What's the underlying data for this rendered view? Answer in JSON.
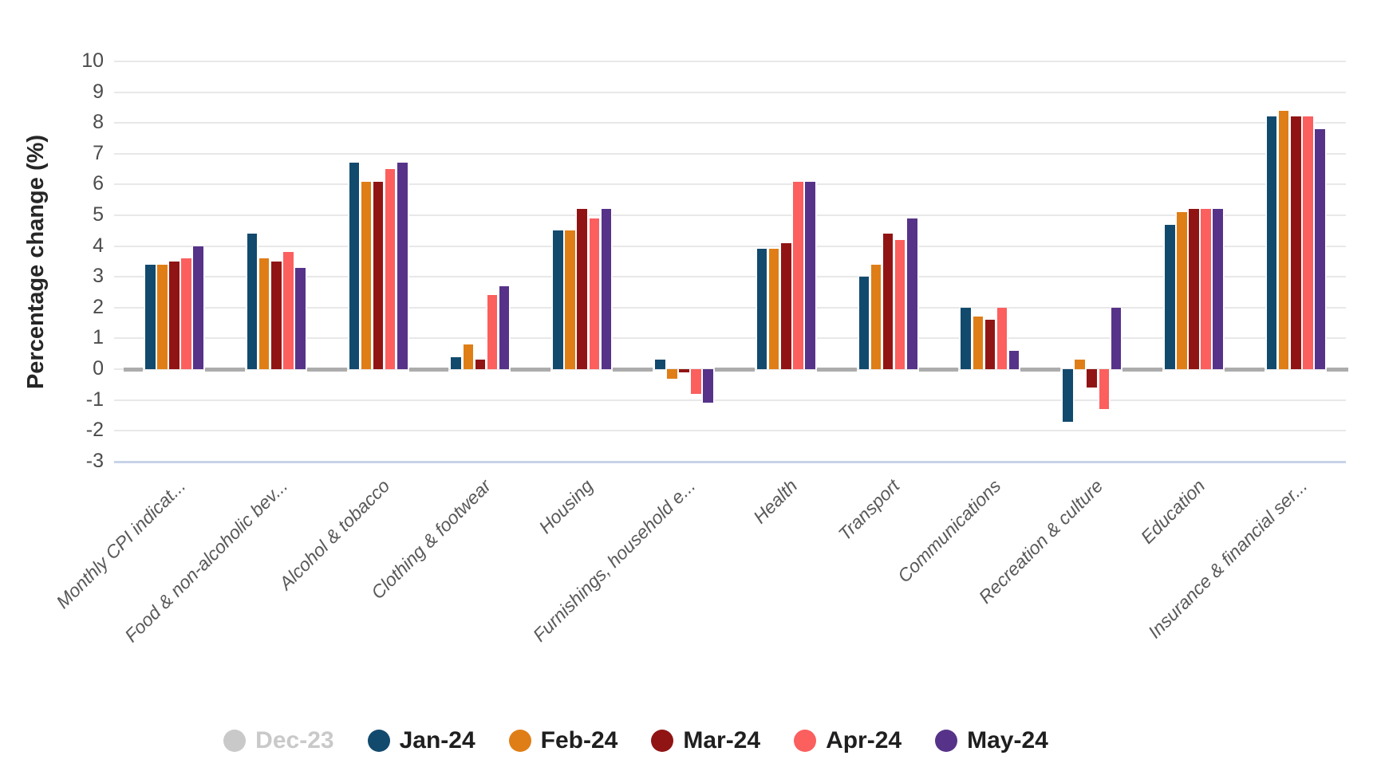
{
  "chart_data": {
    "type": "bar",
    "title": "",
    "ylabel": "Percentage change (%)",
    "ylim": [
      -3,
      10
    ],
    "ytick_interval": 1,
    "grid": "horizontal",
    "legend_position": "bottom",
    "categories": [
      "Monthly CPI indicat...",
      "Food & non-alcoholic bev...",
      "Alcohol & tobacco",
      "Clothing & footwear",
      "Housing",
      "Furnishings, household e...",
      "Health",
      "Transport",
      "Communications",
      "Recreation & culture",
      "Education",
      "Insurance & financial ser..."
    ],
    "series": [
      {
        "name": "Dec-23",
        "color": "#c9c9c9",
        "hidden": true,
        "values": [
          null,
          null,
          null,
          null,
          null,
          null,
          null,
          null,
          null,
          null,
          null,
          null
        ]
      },
      {
        "name": "Jan-24",
        "color": "#124a6e",
        "values": [
          3.4,
          4.4,
          6.7,
          0.4,
          4.5,
          0.3,
          3.9,
          3.0,
          2.0,
          -1.7,
          4.7,
          8.2
        ]
      },
      {
        "name": "Feb-24",
        "color": "#df7e16",
        "values": [
          3.4,
          3.6,
          6.1,
          0.8,
          4.5,
          -0.3,
          3.9,
          3.4,
          1.7,
          0.3,
          5.1,
          8.4
        ]
      },
      {
        "name": "Mar-24",
        "color": "#911414",
        "values": [
          3.5,
          3.5,
          6.1,
          0.3,
          5.2,
          -0.1,
          4.1,
          4.4,
          1.6,
          -0.6,
          5.2,
          8.2
        ]
      },
      {
        "name": "Apr-24",
        "color": "#fb5f5e",
        "values": [
          3.6,
          3.8,
          6.5,
          2.4,
          4.9,
          -0.8,
          6.1,
          4.2,
          2.0,
          -1.3,
          5.2,
          8.2
        ]
      },
      {
        "name": "May-24",
        "color": "#563389",
        "values": [
          4.0,
          3.3,
          6.7,
          2.7,
          5.2,
          -1.1,
          6.1,
          4.9,
          0.6,
          2.0,
          5.2,
          7.8
        ]
      }
    ],
    "colors": {
      "gridline": "#e8e8e8",
      "bottom_axis_line": "#c7d3e8",
      "hidden_series_dash": "#acacac",
      "tick_text": "#4c4c4c",
      "category_text": "#595959",
      "legend_text": "#1f1f1f",
      "legend_disabled_text": "#c9c9c9"
    }
  }
}
